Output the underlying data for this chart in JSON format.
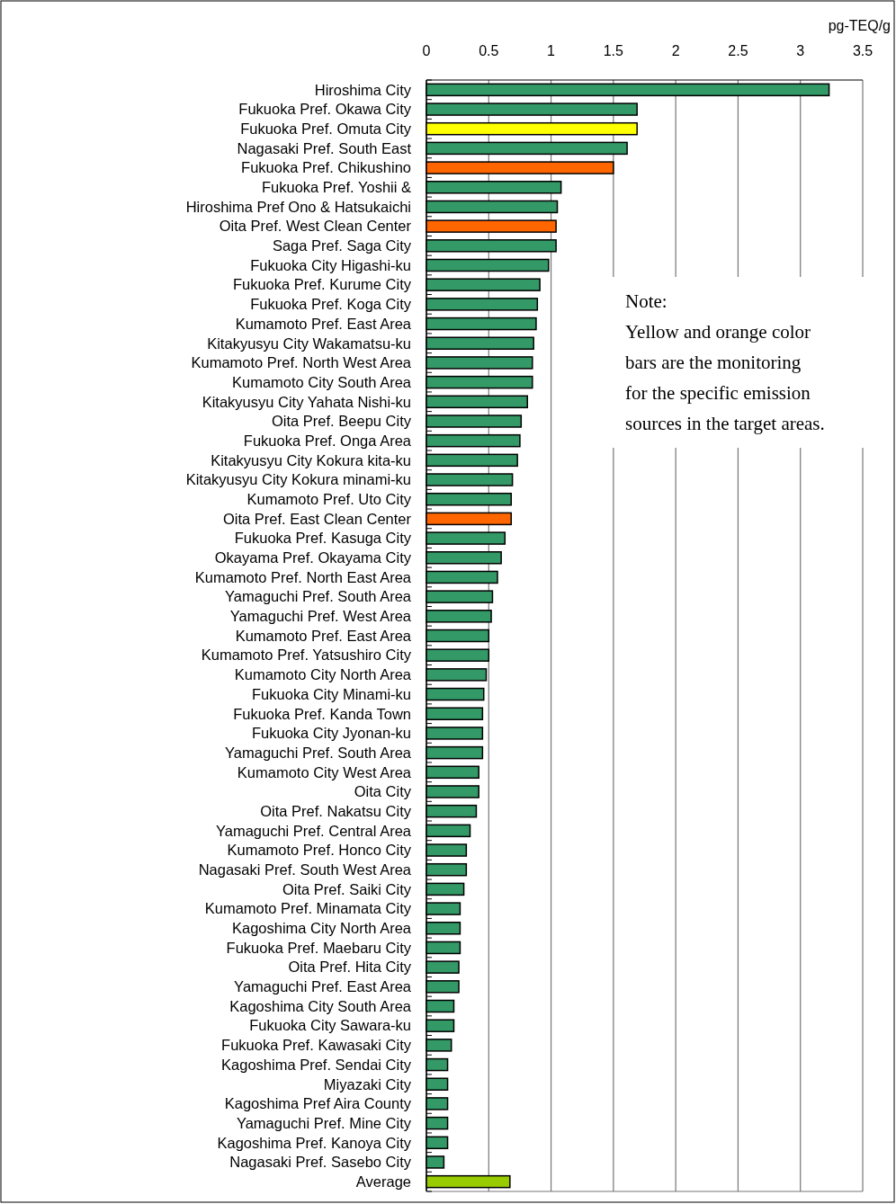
{
  "chart_data": {
    "type": "bar",
    "orientation": "horizontal",
    "xlabel": "pg-TEQ/g",
    "grid": "x",
    "xlim": [
      0,
      3.5
    ],
    "xticks": [
      0,
      0.5,
      1,
      1.5,
      2,
      2.5,
      3,
      3.5
    ],
    "annotations": [
      "Note:",
      "Yellow and orange color",
      "bars are the monitoring",
      "for the specific emission",
      "sources in the target areas."
    ],
    "categories": [
      "Hiroshima City",
      "Fukuoka Pref. Okawa City",
      "Fukuoka Pref. Omuta City",
      "Nagasaki Pref. South East",
      "Fukuoka Pref. Chikushino",
      "Fukuoka Pref. Yoshii &",
      "Hiroshima Pref Ono & Hatsukaichi",
      "Oita Pref. West Clean Center",
      "Saga Pref. Saga City",
      "Fukuoka City Higashi-ku",
      "Fukuoka Pref. Kurume City",
      "Fukuoka Pref. Koga City",
      "Kumamoto Pref. East Area",
      "Kitakyusyu City Wakamatsu-ku",
      "Kumamoto Pref. North West Area",
      "Kumamoto City South Area",
      "Kitakyusyu City Yahata Nishi-ku",
      "Oita Pref. Beepu City",
      "Fukuoka Pref. Onga Area",
      "Kitakyusyu City Kokura kita-ku",
      "Kitakyusyu City Kokura minami-ku",
      "Kumamoto Pref. Uto City",
      "Oita Pref. East Clean Center",
      "Fukuoka Pref. Kasuga City",
      "Okayama Pref. Okayama City",
      "Kumamoto Pref. North East Area",
      "Yamaguchi Pref. South Area",
      "Yamaguchi Pref. West Area",
      "Kumamoto Pref. East Area",
      "Kumamoto Pref. Yatsushiro City",
      "Kumamoto City North Area",
      "Fukuoka City Minami-ku",
      "Fukuoka Pref. Kanda Town",
      "Fukuoka City Jyonan-ku",
      "Yamaguchi Pref. South Area",
      "Kumamoto City West Area",
      "Oita City",
      "Oita Pref. Nakatsu City",
      "Yamaguchi Pref. Central Area",
      "Kumamoto Pref. Honco City",
      "Nagasaki Pref. South West Area",
      "Oita Pref. Saiki City",
      "Kumamoto Pref. Minamata City",
      "Kagoshima City North Area",
      "Fukuoka Pref. Maebaru City",
      "Oita Pref. Hita City",
      "Yamaguchi Pref. East Area",
      "Kagoshima City South Area",
      "Fukuoka City Sawara-ku",
      "Fukuoka Pref. Kawasaki City",
      "Kagoshima Pref. Sendai City",
      "Miyazaki City",
      "Kagoshima Pref Aira County",
      "Yamaguchi Pref. Mine City",
      "Kagoshima Pref. Kanoya City",
      "Nagasaki Pref. Sasebo City",
      "Average"
    ],
    "values": [
      3.23,
      1.69,
      1.69,
      1.61,
      1.5,
      1.08,
      1.05,
      1.04,
      1.04,
      0.98,
      0.91,
      0.89,
      0.88,
      0.86,
      0.85,
      0.85,
      0.81,
      0.76,
      0.75,
      0.73,
      0.69,
      0.68,
      0.68,
      0.63,
      0.6,
      0.57,
      0.53,
      0.52,
      0.5,
      0.5,
      0.48,
      0.46,
      0.45,
      0.45,
      0.45,
      0.42,
      0.42,
      0.4,
      0.35,
      0.32,
      0.32,
      0.3,
      0.27,
      0.27,
      0.27,
      0.26,
      0.26,
      0.22,
      0.22,
      0.2,
      0.17,
      0.17,
      0.17,
      0.17,
      0.17,
      0.14,
      0.67
    ],
    "colors": [
      "#339966",
      "#339966",
      "#ffff00",
      "#339966",
      "#ff6600",
      "#339966",
      "#339966",
      "#ff6600",
      "#339966",
      "#339966",
      "#339966",
      "#339966",
      "#339966",
      "#339966",
      "#339966",
      "#339966",
      "#339966",
      "#339966",
      "#339966",
      "#339966",
      "#339966",
      "#339966",
      "#ff6600",
      "#339966",
      "#339966",
      "#339966",
      "#339966",
      "#339966",
      "#339966",
      "#339966",
      "#339966",
      "#339966",
      "#339966",
      "#339966",
      "#339966",
      "#339966",
      "#339966",
      "#339966",
      "#339966",
      "#339966",
      "#339966",
      "#339966",
      "#339966",
      "#339966",
      "#339966",
      "#339966",
      "#339966",
      "#339966",
      "#339966",
      "#339966",
      "#339966",
      "#339966",
      "#339966",
      "#339966",
      "#339966",
      "#339966",
      "#99cc00"
    ]
  }
}
